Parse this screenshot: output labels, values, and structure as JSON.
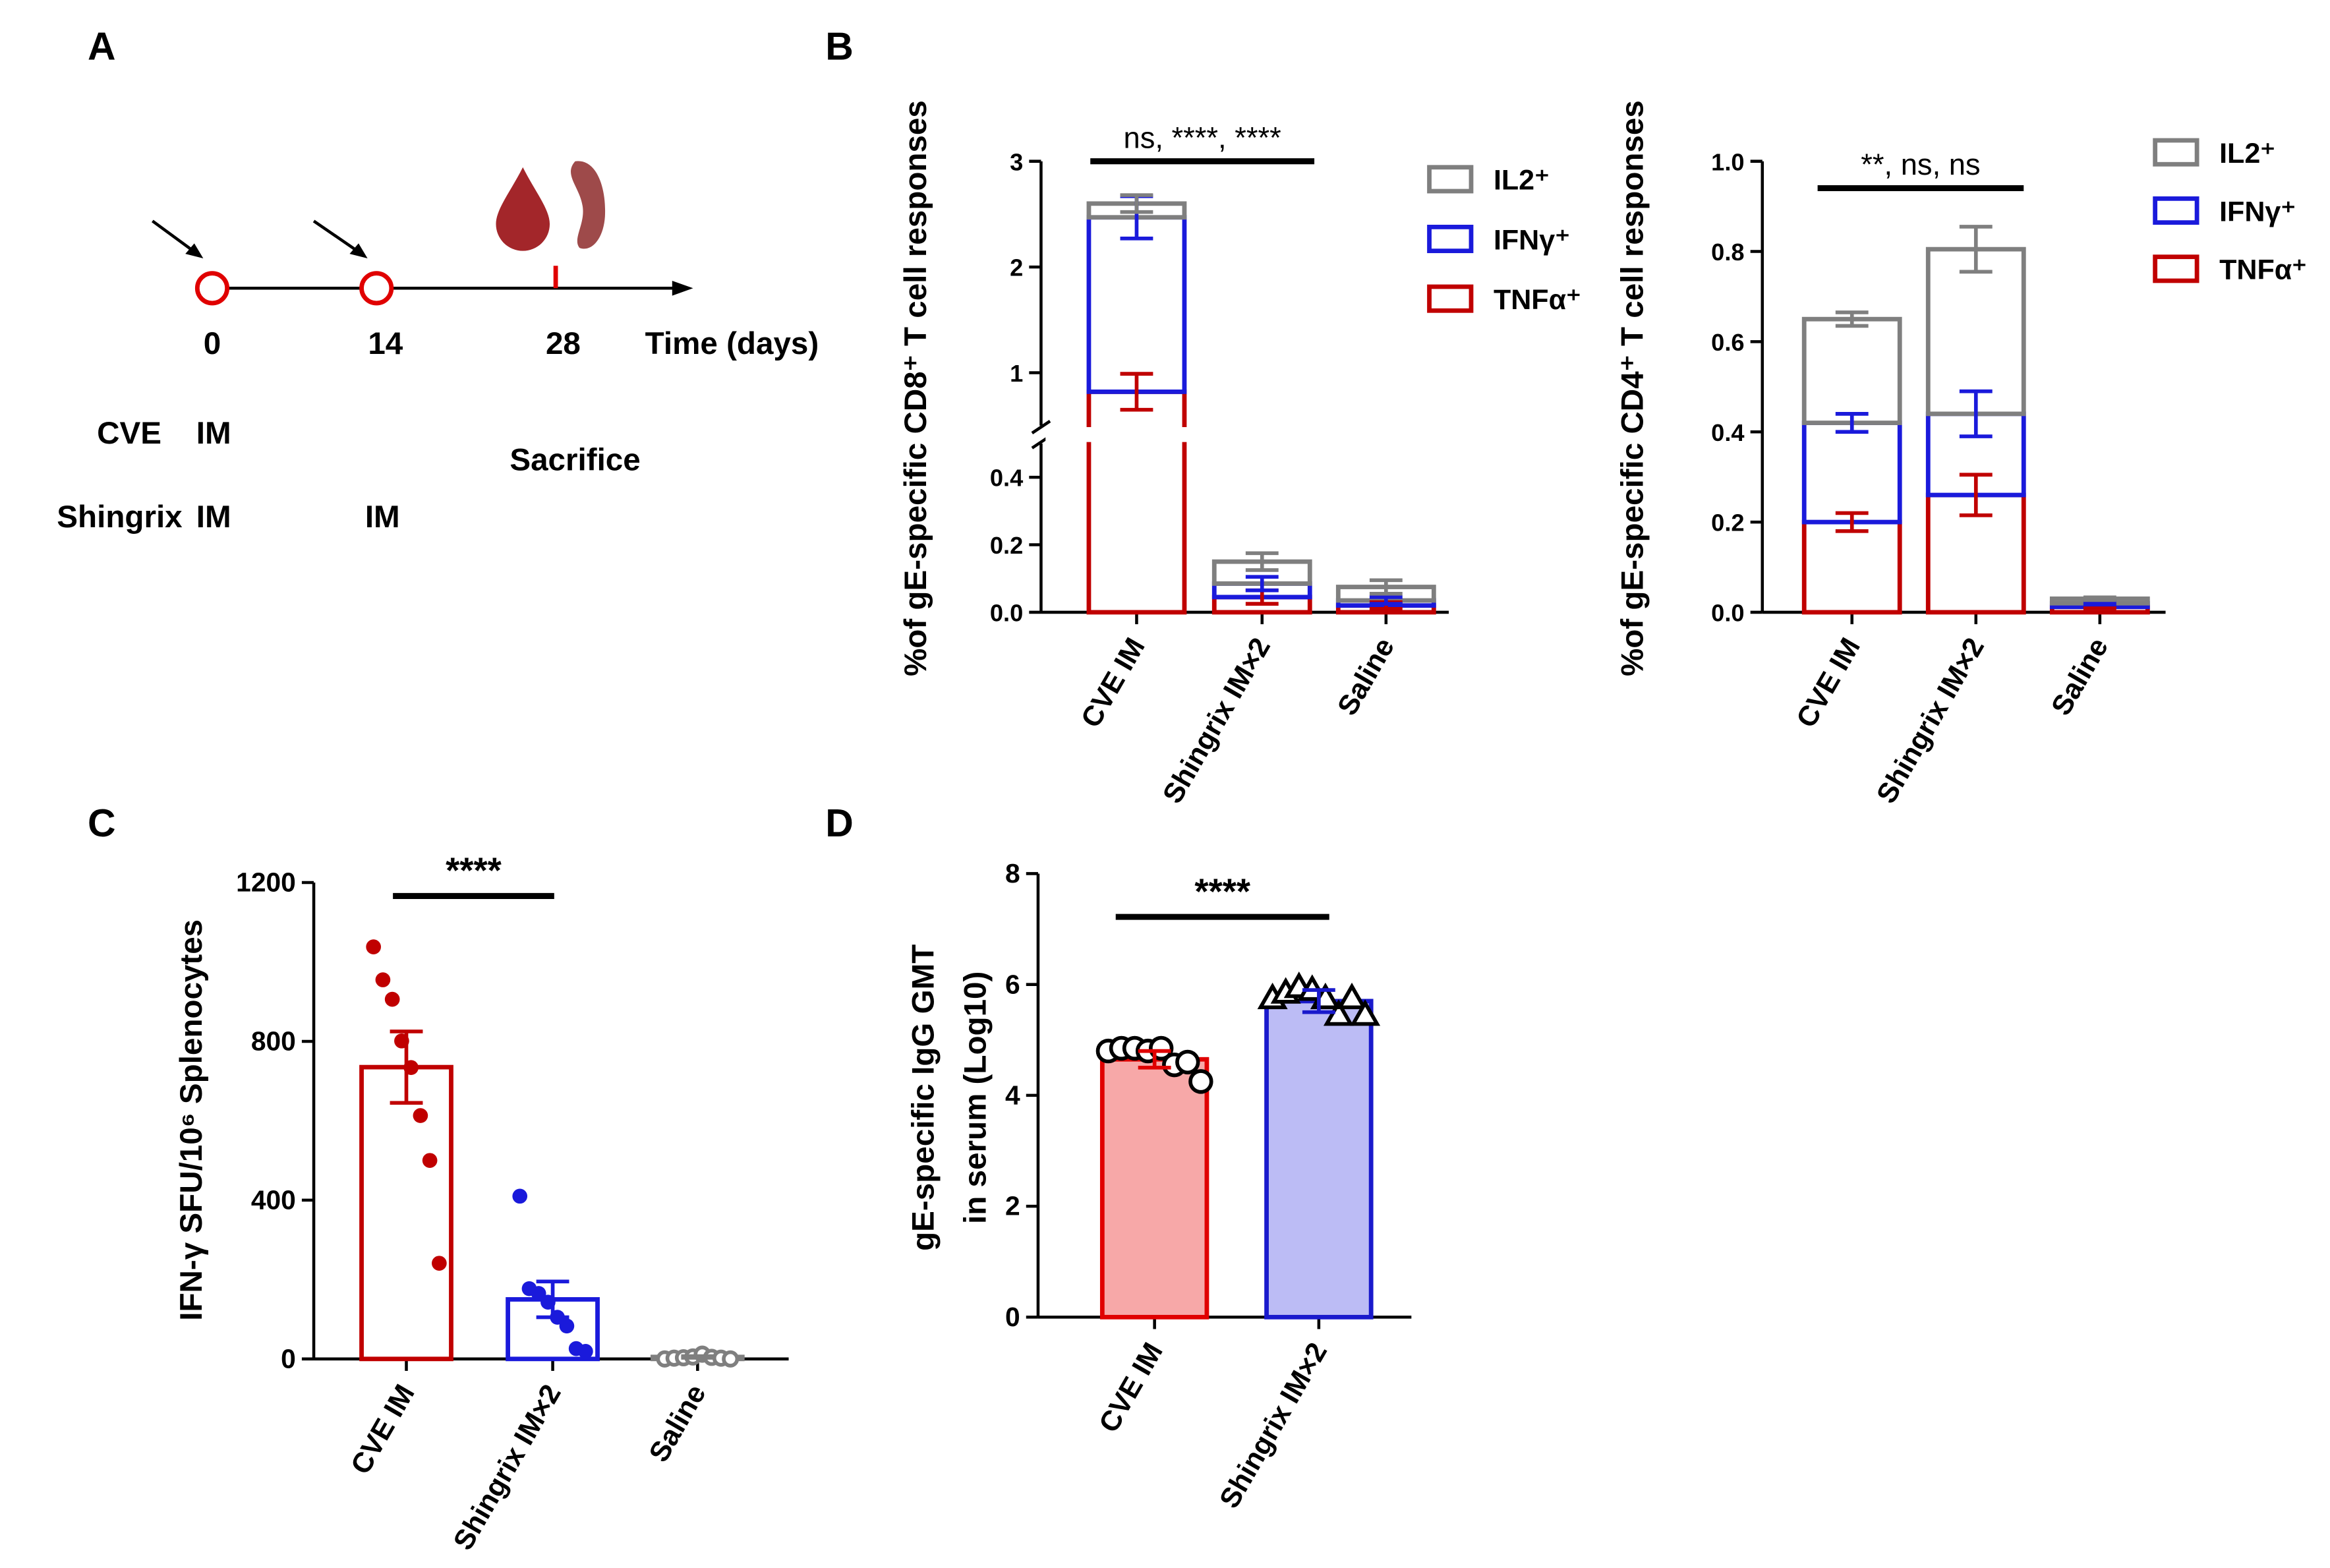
{
  "panel_labels": [
    "A",
    "B",
    "C",
    "D"
  ],
  "timeline": {
    "days": [
      "0",
      "14",
      "28"
    ],
    "axis_label": "Time (days)",
    "groups": [
      {
        "name": "CVE",
        "doses": [
          "IM"
        ]
      },
      {
        "name": "Shingrix",
        "doses": [
          "IM",
          "IM"
        ]
      }
    ],
    "endpoint": "Sacrifice"
  },
  "chart_data": [
    {
      "type": "stacked_bar",
      "ylabel": "%of gE-specific CD8⁺ T cell responses",
      "categories": [
        "CVE IM",
        "Shingrix IM×2",
        "Saline"
      ],
      "series": [
        {
          "name": "TNFα⁺",
          "color": "#c00000",
          "values": [
            0.82,
            0.045,
            0.02
          ],
          "errors": [
            0.17,
            0.02,
            0.01
          ]
        },
        {
          "name": "IFNγ⁺",
          "color": "#1a1adb",
          "values": [
            1.65,
            0.04,
            0.015
          ],
          "errors": [
            0.2,
            0.02,
            0.01
          ]
        },
        {
          "name": "IL2⁺",
          "color": "#7f7f7f",
          "values": [
            0.13,
            0.065,
            0.04
          ],
          "errors": [
            0.08,
            0.025,
            0.02
          ]
        }
      ],
      "ylim": [
        0,
        3
      ],
      "ybreak": 0.5,
      "yticks": [
        {
          "value": 0,
          "label": "0.0"
        },
        {
          "value": 0.2,
          "label": "0.2"
        },
        {
          "value": 0.4,
          "label": "0.4"
        },
        1,
        2,
        3
      ],
      "annotation": "ns, ****, ****"
    },
    {
      "type": "stacked_bar",
      "ylabel": "%of gE-specific CD4⁺ T cell responses",
      "categories": [
        "CVE IM",
        "Shingrix IM×2",
        "Saline"
      ],
      "series": [
        {
          "name": "TNFα⁺",
          "color": "#c00000",
          "values": [
            0.2,
            0.26,
            0.012
          ],
          "errors": [
            0.02,
            0.045,
            0.003
          ]
        },
        {
          "name": "IFNγ⁺",
          "color": "#1a1adb",
          "values": [
            0.22,
            0.18,
            0.008
          ],
          "errors": [
            0.02,
            0.05,
            0.003
          ]
        },
        {
          "name": "IL2⁺",
          "color": "#7f7f7f",
          "values": [
            0.23,
            0.365,
            0.01
          ],
          "errors": [
            0.015,
            0.05,
            0.003
          ]
        }
      ],
      "ylim": [
        0,
        1
      ],
      "yticks": [
        {
          "value": 0,
          "label": "0.0"
        },
        {
          "value": 0.2,
          "label": "0.2"
        },
        {
          "value": 0.4,
          "label": "0.4"
        },
        {
          "value": 0.6,
          "label": "0.6"
        },
        {
          "value": 0.8,
          "label": "0.8"
        },
        {
          "value": 1,
          "label": "1.0"
        }
      ],
      "annotation": "**, ns, ns"
    },
    {
      "type": "bar",
      "ylabel": "IFN-γ SFU/10⁶ Splenocytes",
      "categories": [
        "CVE IM",
        "Shingrix IM×2",
        "Saline"
      ],
      "values": [
        735,
        150,
        5
      ],
      "errors": [
        90,
        45,
        2
      ],
      "points": [
        [
          1038,
          955,
          906,
          801,
          734,
          613,
          500,
          241
        ],
        [
          410,
          177,
          165,
          143,
          105,
          83,
          26,
          19
        ],
        [
          0,
          2,
          3,
          5,
          12,
          4,
          2,
          0
        ]
      ],
      "colors": [
        "#c00000",
        "#1a1adb",
        "#7f7f7f"
      ],
      "markers": [
        "dot",
        "dot",
        "open_circle"
      ],
      "ylim": [
        0,
        1200
      ],
      "yticks": [
        0,
        400,
        800,
        1200
      ],
      "annotation": "****"
    },
    {
      "type": "bar",
      "ylabel": [
        "gE-specific IgG GMT",
        "in serum (Log10)"
      ],
      "categories": [
        "CVE IM",
        "Shingrix IM×2"
      ],
      "values": [
        4.65,
        5.7
      ],
      "errors": [
        0.15,
        0.2
      ],
      "points": [
        [
          4.8,
          4.85,
          4.85,
          4.8,
          4.85,
          4.55,
          4.6,
          4.25
        ],
        [
          5.75,
          5.85,
          5.95,
          5.9,
          5.75,
          5.45,
          5.75,
          5.45
        ]
      ],
      "colors": [
        "#e00000",
        "#1a1acc"
      ],
      "fills": [
        "#f7a8a8",
        "#bcbcf5"
      ],
      "markers": [
        "open_circle",
        "open_triangle"
      ],
      "ylim": [
        0,
        8
      ],
      "yticks": [
        0,
        2,
        4,
        6,
        8
      ],
      "annotation": "****"
    }
  ]
}
